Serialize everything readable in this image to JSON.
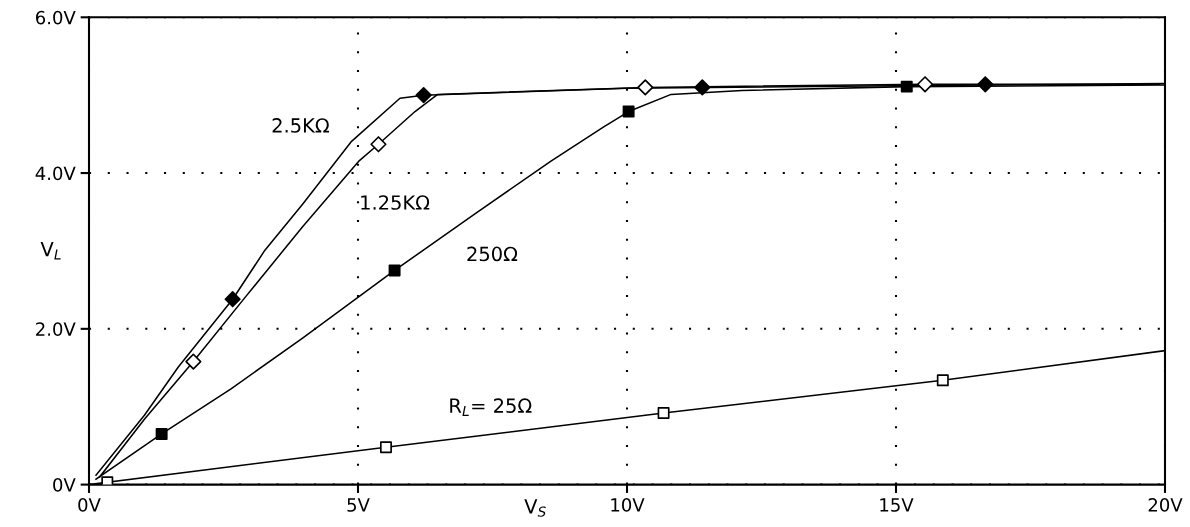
{
  "chart_data": {
    "type": "line",
    "xlabel": "V$_{S}$",
    "ylabel": "V$_{L}$",
    "xlim": [
      0,
      20
    ],
    "ylim": [
      0,
      6
    ],
    "xticks": [
      {
        "value": 0,
        "label": "0V"
      },
      {
        "value": 5,
        "label": "5V"
      },
      {
        "value": 10,
        "label": "10V"
      },
      {
        "value": 15,
        "label": "15V"
      },
      {
        "value": 20,
        "label": "20V"
      }
    ],
    "yticks": [
      {
        "value": 0,
        "label": "0V"
      },
      {
        "value": 2,
        "label": "2.0V"
      },
      {
        "value": 4,
        "label": "4.0V"
      },
      {
        "value": 6,
        "label": "6.0V"
      }
    ],
    "grid": true,
    "line_style": "solid",
    "series": [
      {
        "name": "2.5KΩ",
        "color": "#000000",
        "x": [
          0.13,
          1.03,
          1.66,
          2.67,
          3.27,
          3.97,
          4.87,
          5.78,
          6.22,
          10,
          15,
          20
        ],
        "values": [
          0.12,
          0.89,
          1.51,
          2.38,
          3.01,
          3.6,
          4.4,
          4.96,
          5.0,
          5.09,
          5.12,
          5.15
        ]
      },
      {
        "name": "1.25KΩ",
        "color": "#000000",
        "x": [
          0.2,
          1.03,
          1.94,
          2.92,
          3.97,
          5.01,
          5.38,
          6.06,
          6.48,
          10.34,
          15.54,
          19.9
        ],
        "values": [
          0.1,
          0.84,
          1.58,
          2.42,
          3.31,
          4.15,
          4.37,
          4.79,
          5.01,
          5.1,
          5.14,
          5.14
        ]
      },
      {
        "name": "250Ω",
        "color": "#000000",
        "x": [
          0.13,
          1.35,
          2.64,
          3.97,
          5.68,
          7.18,
          8.58,
          9.56,
          10.03,
          10.82,
          12.14,
          15.2,
          20
        ],
        "values": [
          0.07,
          0.65,
          1.23,
          1.88,
          2.75,
          3.48,
          4.15,
          4.59,
          4.79,
          5.01,
          5.06,
          5.11,
          5.13
        ]
      },
      {
        "name": "R$_{L}$= 25Ω",
        "color": "#000000",
        "x": [
          0,
          5.52,
          10.68,
          15.87,
          20
        ],
        "values": [
          0,
          0.48,
          0.92,
          1.34,
          1.72
        ]
      },
      {
        "type": "scatter",
        "marker": "diamond",
        "color": "#000000",
        "colors": [
          "#000000",
          "#000000",
          "#000000",
          "#000000"
        ],
        "x": [
          2.67,
          6.22,
          11.4,
          16.66
        ],
        "values": [
          2.38,
          5.0,
          5.1,
          5.14
        ]
      },
      {
        "type": "scatter",
        "marker": "diamond",
        "color": "#000000",
        "colors": [
          "#ffffff",
          "#ffffff",
          "#ffffff",
          "#ffffff"
        ],
        "x": [
          1.94,
          5.38,
          10.34,
          15.54
        ],
        "values": [
          1.58,
          4.37,
          5.1,
          5.14
        ]
      },
      {
        "type": "scatter",
        "marker": "square",
        "color": "#000000",
        "colors": [
          "#000000",
          "#000000",
          "#000000",
          "#000000"
        ],
        "x": [
          1.35,
          5.68,
          10.03,
          15.2
        ],
        "values": [
          0.65,
          2.75,
          4.79,
          5.11
        ]
      },
      {
        "type": "scatter",
        "marker": "square",
        "color": "#000000",
        "colors": [
          "#ffffff",
          "#ffffff",
          "#ffffff",
          "#ffffff"
        ],
        "x": [
          0.34,
          5.52,
          10.68,
          15.87
        ],
        "values": [
          0.03,
          0.48,
          0.92,
          1.34
        ]
      }
    ]
  }
}
